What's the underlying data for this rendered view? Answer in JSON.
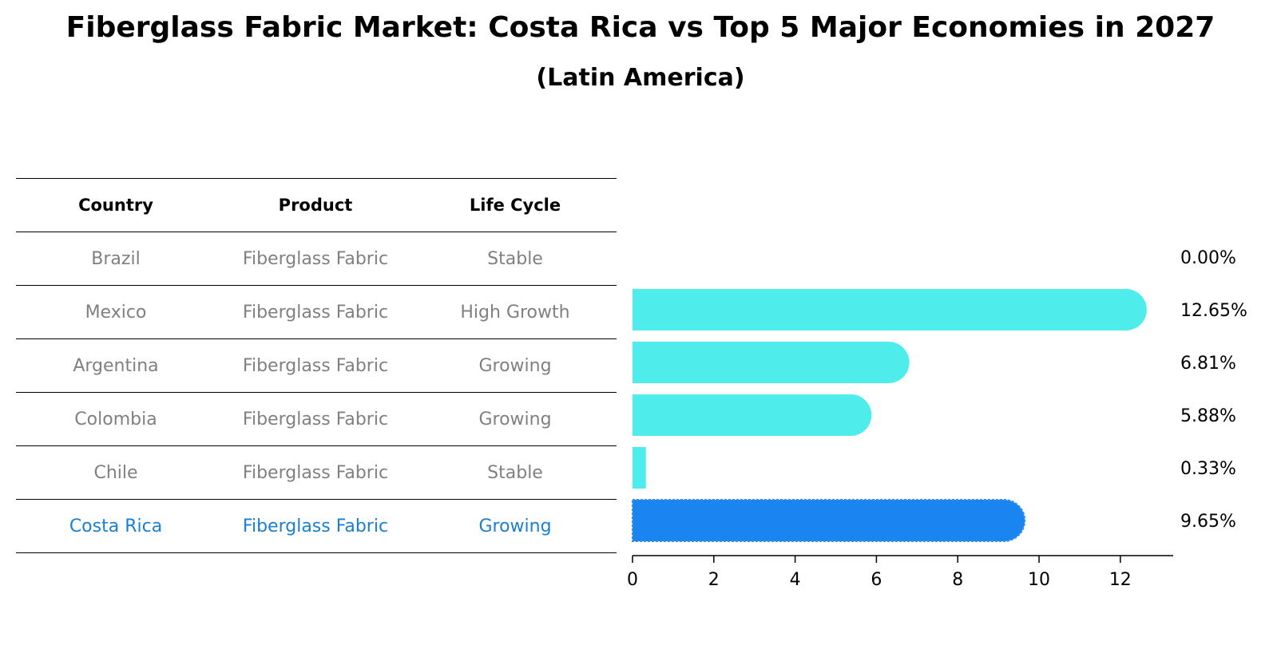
{
  "chart_data": {
    "type": "bar",
    "orientation": "horizontal",
    "title": "Fiberglass Fabric Market: Costa Rica vs Top 5 Major Economies in 2027",
    "subtitle": "(Latin America)",
    "table": {
      "columns": [
        "Country",
        "Product",
        "Life Cycle"
      ],
      "rows": [
        {
          "country": "Brazil",
          "product": "Fiberglass Fabric",
          "life_cycle": "Stable"
        },
        {
          "country": "Mexico",
          "product": "Fiberglass Fabric",
          "life_cycle": "High Growth"
        },
        {
          "country": "Argentina",
          "product": "Fiberglass Fabric",
          "life_cycle": "Growing"
        },
        {
          "country": "Colombia",
          "product": "Fiberglass Fabric",
          "life_cycle": "Growing"
        },
        {
          "country": "Chile",
          "product": "Fiberglass Fabric",
          "life_cycle": "Stable"
        },
        {
          "country": "Costa Rica",
          "product": "Fiberglass Fabric",
          "life_cycle": "Growing"
        }
      ]
    },
    "categories": [
      "Brazil",
      "Mexico",
      "Argentina",
      "Colombia",
      "Chile",
      "Costa Rica"
    ],
    "values": [
      0.0,
      12.65,
      6.81,
      5.88,
      0.33,
      9.65
    ],
    "value_labels": [
      "0.00%",
      "12.65%",
      "6.81%",
      "5.88%",
      "0.33%",
      "9.65%"
    ],
    "highlight": "Costa Rica",
    "xlim": [
      0,
      13.3
    ],
    "xticks": [
      0,
      2,
      4,
      6,
      8,
      10,
      12
    ],
    "xlabel": "",
    "ylabel": "",
    "colors": {
      "default": "#4EECEA",
      "highlight": "#1A85F0"
    }
  }
}
